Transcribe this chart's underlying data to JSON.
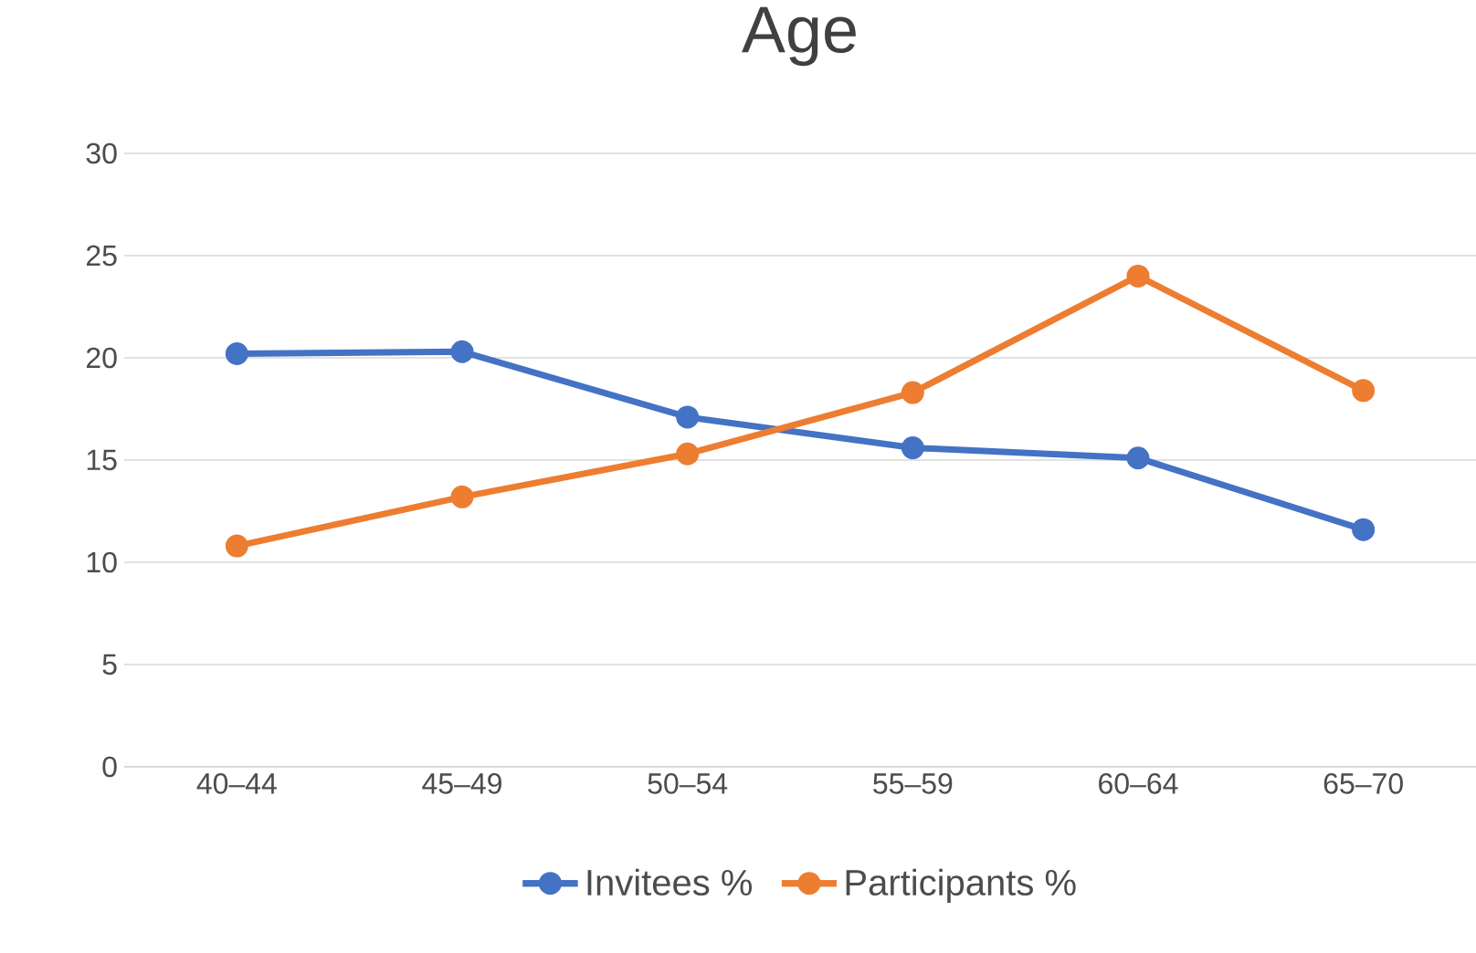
{
  "chart_data": {
    "type": "line",
    "title": "Age",
    "categories": [
      "40–44",
      "45–49",
      "50–54",
      "55–59",
      "60–64",
      "65–70"
    ],
    "series": [
      {
        "name": "Invitees %",
        "color": "#4472c4",
        "values": [
          20.2,
          20.3,
          17.1,
          15.6,
          15.1,
          11.6
        ]
      },
      {
        "name": "Participants %",
        "color": "#ed7d31",
        "values": [
          10.8,
          13.2,
          15.3,
          18.3,
          24.0,
          18.4
        ]
      }
    ],
    "ylim": [
      0,
      30
    ],
    "yticks": [
      0,
      5,
      10,
      15,
      20,
      25,
      30
    ],
    "grid": "y",
    "legend": "bottom",
    "marker": "circle",
    "line_style": "solid"
  }
}
